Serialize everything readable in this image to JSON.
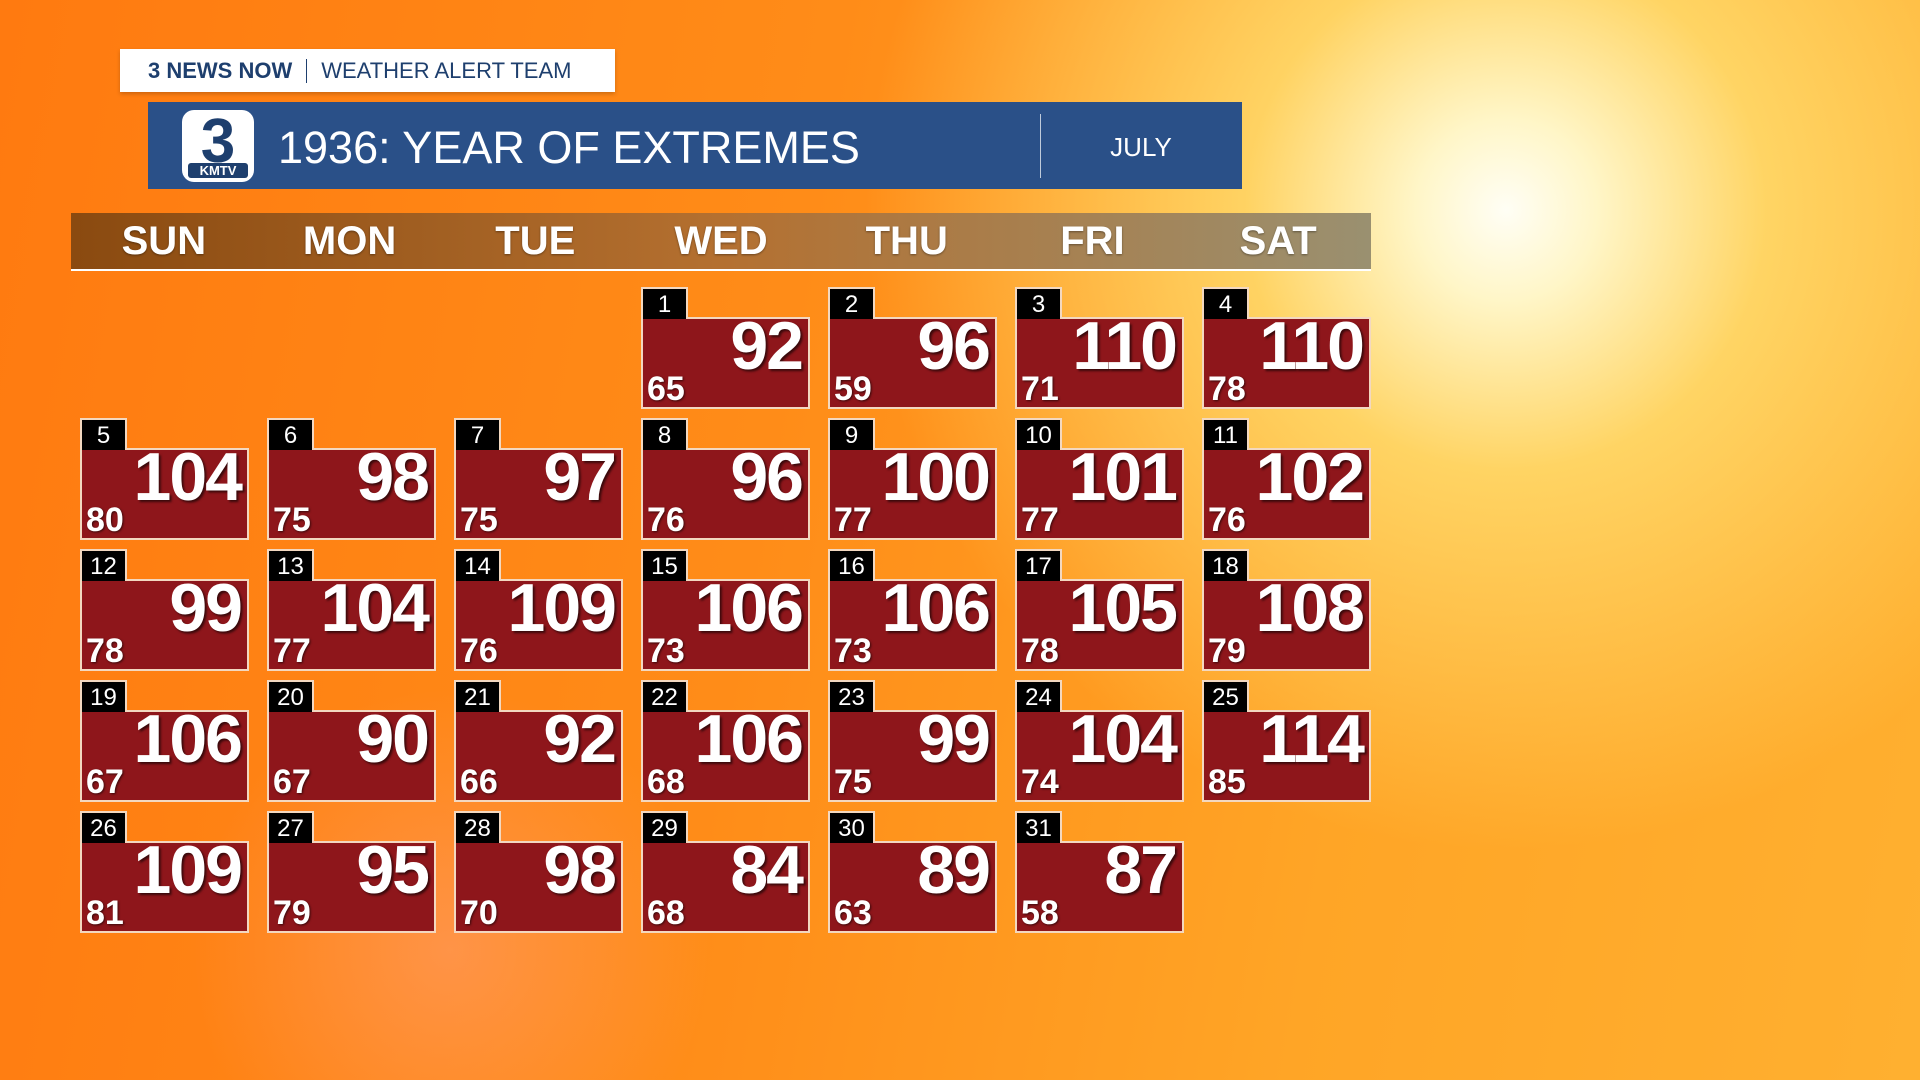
{
  "header": {
    "brand": "3 NEWS NOW",
    "team": "WEATHER ALERT TEAM"
  },
  "logo": {
    "number": "3",
    "station": "KMTV"
  },
  "title": "1936: YEAR OF EXTREMES",
  "month": "JULY",
  "weekdays": [
    "SUN",
    "MON",
    "TUE",
    "WED",
    "THU",
    "FRI",
    "SAT"
  ],
  "days": [
    {
      "day": 1,
      "high": 92,
      "low": 65
    },
    {
      "day": 2,
      "high": 96,
      "low": 59
    },
    {
      "day": 3,
      "high": 110,
      "low": 71
    },
    {
      "day": 4,
      "high": 110,
      "low": 78
    },
    {
      "day": 5,
      "high": 104,
      "low": 80
    },
    {
      "day": 6,
      "high": 98,
      "low": 75
    },
    {
      "day": 7,
      "high": 97,
      "low": 75
    },
    {
      "day": 8,
      "high": 96,
      "low": 76
    },
    {
      "day": 9,
      "high": 100,
      "low": 77
    },
    {
      "day": 10,
      "high": 101,
      "low": 77
    },
    {
      "day": 11,
      "high": 102,
      "low": 76
    },
    {
      "day": 12,
      "high": 99,
      "low": 78
    },
    {
      "day": 13,
      "high": 104,
      "low": 77
    },
    {
      "day": 14,
      "high": 109,
      "low": 76
    },
    {
      "day": 15,
      "high": 106,
      "low": 73
    },
    {
      "day": 16,
      "high": 106,
      "low": 73
    },
    {
      "day": 17,
      "high": 105,
      "low": 78
    },
    {
      "day": 18,
      "high": 108,
      "low": 79
    },
    {
      "day": 19,
      "high": 106,
      "low": 67
    },
    {
      "day": 20,
      "high": 90,
      "low": 67
    },
    {
      "day": 21,
      "high": 92,
      "low": 66
    },
    {
      "day": 22,
      "high": 106,
      "low": 68
    },
    {
      "day": 23,
      "high": 99,
      "low": 75
    },
    {
      "day": 24,
      "high": 104,
      "low": 74
    },
    {
      "day": 25,
      "high": 114,
      "low": 85
    },
    {
      "day": 26,
      "high": 109,
      "low": 81
    },
    {
      "day": 27,
      "high": 95,
      "low": 79
    },
    {
      "day": 28,
      "high": 98,
      "low": 70
    },
    {
      "day": 29,
      "high": 84,
      "low": 68
    },
    {
      "day": 30,
      "high": 89,
      "low": 63
    },
    {
      "day": 31,
      "high": 87,
      "low": 58
    }
  ]
}
